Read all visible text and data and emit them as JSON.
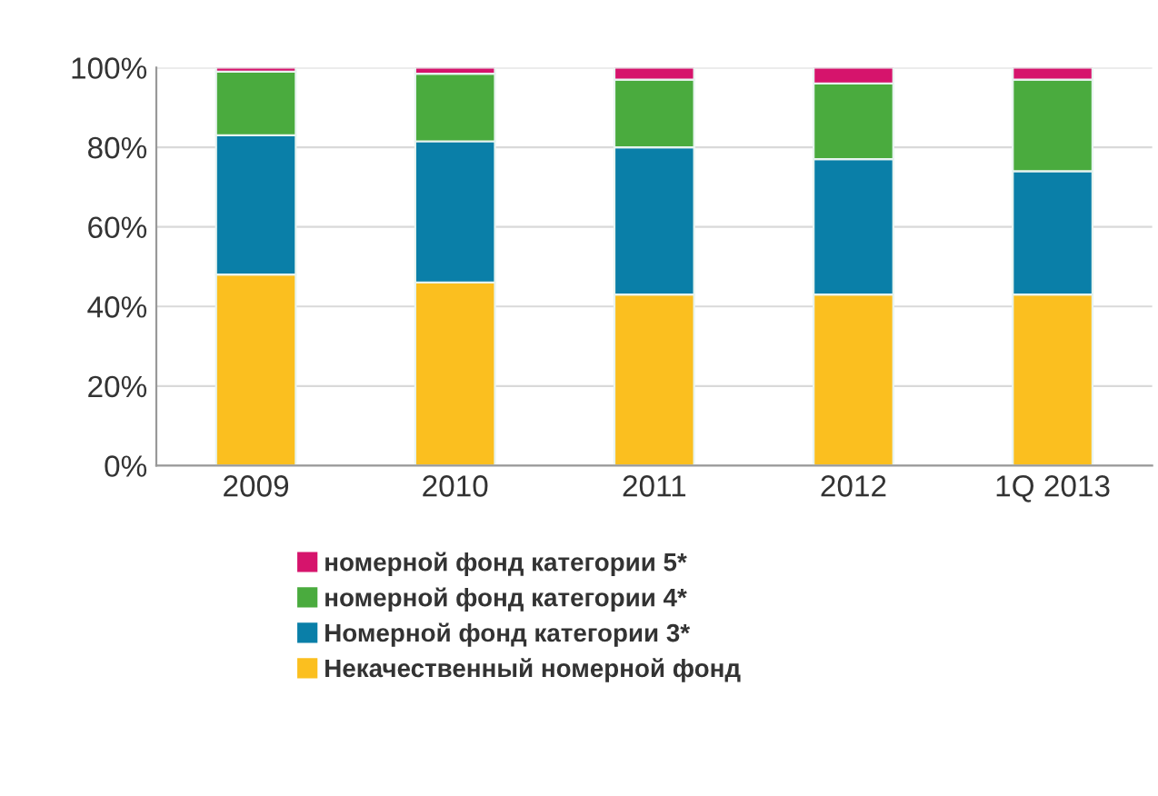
{
  "chart_data": {
    "type": "bar",
    "stacked": true,
    "categories": [
      "2009",
      "2010",
      "2011",
      "2012",
      "1Q 2013"
    ],
    "series": [
      {
        "name": "Некачественный номерной фонд",
        "color": "#fbbf1f",
        "values": [
          48,
          46,
          43,
          43,
          43
        ]
      },
      {
        "name": "Номерной фонд категории 3*",
        "color": "#0a7fa8",
        "values": [
          35,
          35.5,
          37,
          34,
          31
        ]
      },
      {
        "name": "номерной фонд категории 4*",
        "color": "#4aab3e",
        "values": [
          16,
          17,
          17,
          19,
          23
        ]
      },
      {
        "name": "номерной фонд категории 5*",
        "color": "#d6146c",
        "values": [
          1,
          1.5,
          3,
          4,
          3
        ]
      }
    ],
    "ylim": [
      0,
      100
    ],
    "yticks": [
      {
        "value": 0,
        "label": "0%"
      },
      {
        "value": 20,
        "label": "20%"
      },
      {
        "value": 40,
        "label": "40%"
      },
      {
        "value": 60,
        "label": "60%"
      },
      {
        "value": 80,
        "label": "80%"
      },
      {
        "value": 100,
        "label": "100%"
      }
    ],
    "grid": "y",
    "legend": "bottom"
  }
}
